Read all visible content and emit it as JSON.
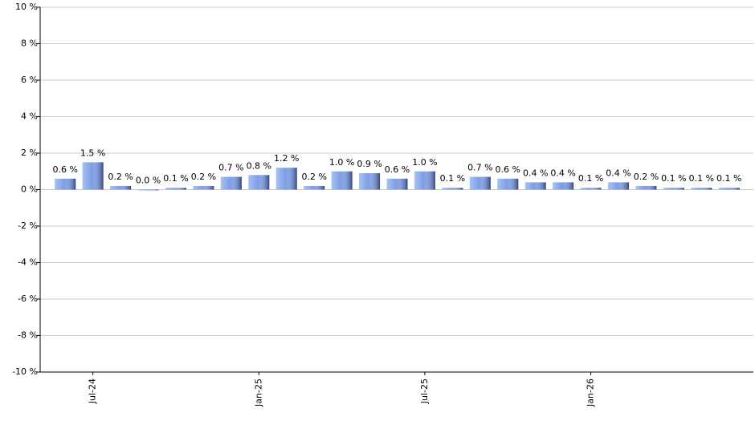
{
  "chart_data": {
    "type": "bar",
    "categories": [
      null,
      "Jul-24",
      null,
      null,
      null,
      null,
      null,
      "Jan-25",
      null,
      null,
      null,
      null,
      null,
      "Jul-25",
      null,
      null,
      null,
      null,
      null,
      "Jan-26",
      null,
      null,
      null,
      null,
      null
    ],
    "values": [
      0.6,
      1.5,
      0.2,
      0.0,
      0.1,
      0.2,
      0.7,
      0.8,
      1.2,
      0.2,
      1.0,
      0.9,
      0.6,
      1.0,
      0.1,
      0.7,
      0.6,
      0.4,
      0.4,
      0.1,
      0.4,
      0.2,
      0.1,
      0.1,
      0.1
    ],
    "value_labels": [
      "0.6 %",
      "1.5 %",
      "0.2 %",
      "0.0 %",
      "0.1 %",
      "0.2 %",
      "0.7 %",
      "0.8 %",
      "1.2 %",
      "0.2 %",
      "1.0 %",
      "0.9 %",
      "0.6 %",
      "1.0 %",
      "0.1 %",
      "0.7 %",
      "0.6 %",
      "0.4 %",
      "0.4 %",
      "0.1 %",
      "0.4 %",
      "0.2 %",
      "0.1 %",
      "0.1 %",
      "0.1 %"
    ],
    "color": "#7d9ee6",
    "ylim": [
      -10,
      10
    ],
    "yticks": [
      {
        "value": -10,
        "label": "-10 %"
      },
      {
        "value": -8,
        "label": "-8 %"
      },
      {
        "value": -6,
        "label": "-6 %"
      },
      {
        "value": -4,
        "label": "-4 %"
      },
      {
        "value": -2,
        "label": "-2 %"
      },
      {
        "value": 0,
        "label": "0 %"
      },
      {
        "value": 2,
        "label": "2 %"
      },
      {
        "value": 4,
        "label": "4 %"
      },
      {
        "value": 6,
        "label": "6 %"
      },
      {
        "value": 8,
        "label": "8 %"
      },
      {
        "value": 10,
        "label": "10 %"
      }
    ],
    "grid": true
  }
}
